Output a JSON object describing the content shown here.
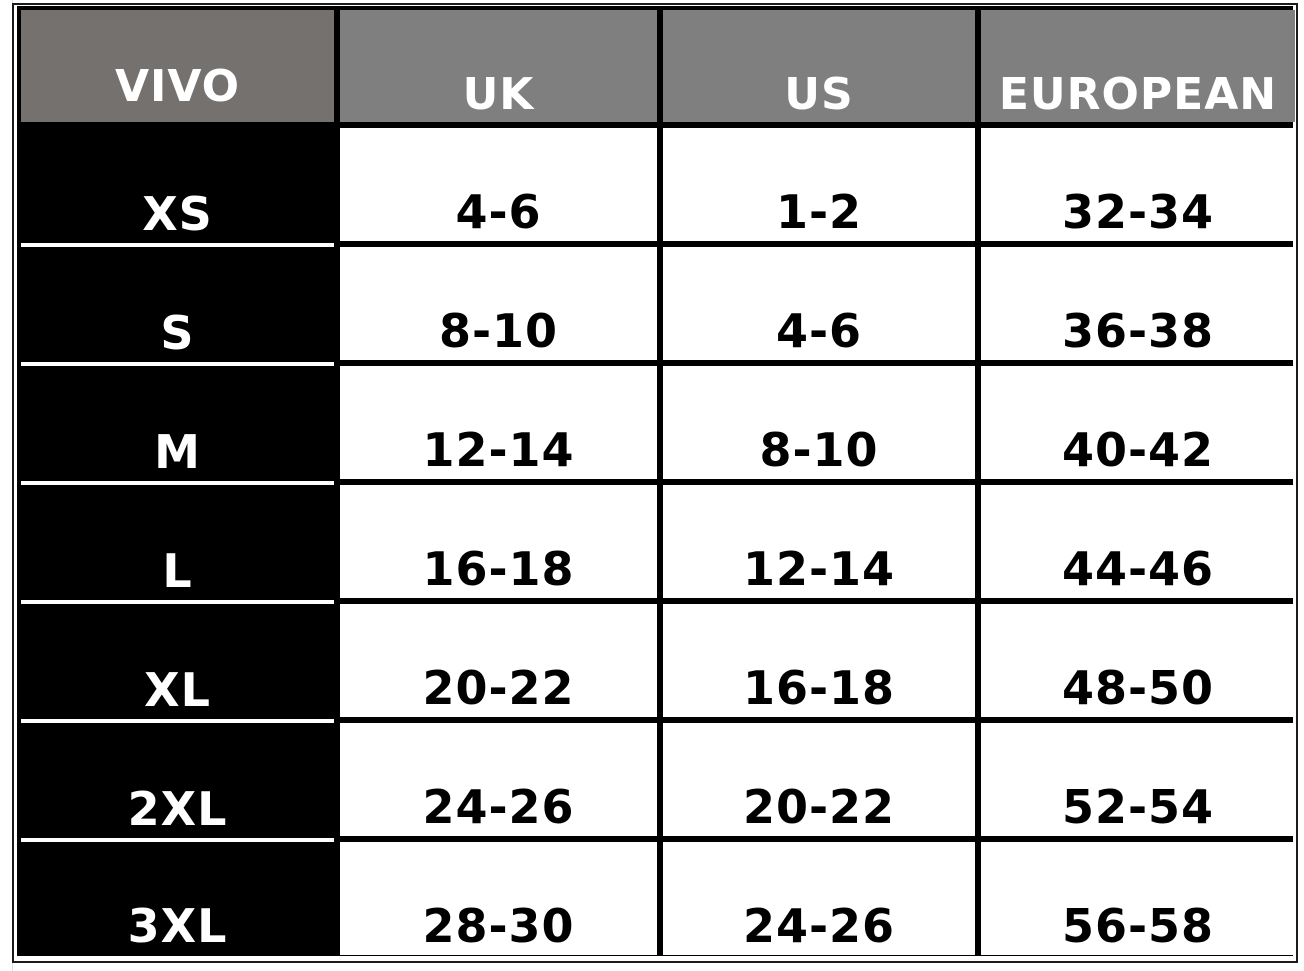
{
  "headers": [
    "VIVO",
    "UK",
    "US",
    "EUROPEAN"
  ],
  "rows": [
    {
      "size": "XS",
      "uk": "4-6",
      "us": "1-2",
      "eu": "32-34"
    },
    {
      "size": "S",
      "uk": "8-10",
      "us": "4-6",
      "eu": "36-38"
    },
    {
      "size": "M",
      "uk": "12-14",
      "us": "8-10",
      "eu": "40-42"
    },
    {
      "size": "L",
      "uk": "16-18",
      "us": "12-14",
      "eu": "44-46"
    },
    {
      "size": "XL",
      "uk": "20-22",
      "us": "16-18",
      "eu": "48-50"
    },
    {
      "size": "2XL",
      "uk": "24-26",
      "us": "20-22",
      "eu": "52-54"
    },
    {
      "size": "3XL",
      "uk": "28-30",
      "us": "24-26",
      "eu": "56-58"
    }
  ],
  "colors": {
    "header_first": "#75716f",
    "header": "#7f7f7f",
    "size_column": "#000000",
    "value_cells": "#ffffff"
  }
}
